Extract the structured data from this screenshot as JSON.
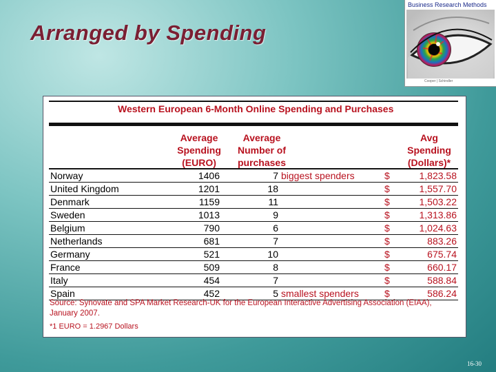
{
  "slide": {
    "title": "Arranged by Spending",
    "page_number": "16-30"
  },
  "logo": {
    "title": "Business Research Methods",
    "footer": "Cooper  |  Schindler",
    "icon": "eye-logo-icon"
  },
  "table": {
    "title": "Western European 6-Month Online Spending and Purchases",
    "headers": {
      "spending": [
        "Average",
        "Spending",
        "(EURO)"
      ],
      "purchases": [
        "Average",
        "Number of",
        "purchases"
      ],
      "dollars": [
        "Avg",
        "Spending",
        "(Dollars)*"
      ]
    },
    "rows": [
      {
        "country": "Norway",
        "spending": "1406",
        "purchases": "7",
        "note": "biggest spenders",
        "currency": "$",
        "dollars": "1,823.58"
      },
      {
        "country": "United Kingdom",
        "spending": "1201",
        "purchases": "18",
        "note": "",
        "currency": "$",
        "dollars": "1,557.70"
      },
      {
        "country": "Denmark",
        "spending": "1159",
        "purchases": "11",
        "note": "",
        "currency": "$",
        "dollars": "1,503.22"
      },
      {
        "country": "Sweden",
        "spending": "1013",
        "purchases": "9",
        "note": "",
        "currency": "$",
        "dollars": "1,313.86"
      },
      {
        "country": "Belgium",
        "spending": "790",
        "purchases": "6",
        "note": "",
        "currency": "$",
        "dollars": "1,024.63"
      },
      {
        "country": "Netherlands",
        "spending": "681",
        "purchases": "7",
        "note": "",
        "currency": "$",
        "dollars": "883.26"
      },
      {
        "country": "Germany",
        "spending": "521",
        "purchases": "10",
        "note": "",
        "currency": "$",
        "dollars": "675.74"
      },
      {
        "country": "France",
        "spending": "509",
        "purchases": "8",
        "note": "",
        "currency": "$",
        "dollars": "660.17"
      },
      {
        "country": "Italy",
        "spending": "454",
        "purchases": "7",
        "note": "",
        "currency": "$",
        "dollars": "588.84"
      },
      {
        "country": "Spain",
        "spending": "452",
        "purchases": "5",
        "note": "smallest spenders",
        "currency": "$",
        "dollars": "586.24"
      }
    ],
    "source": "Source: Synovate and SPA Market Research-UK for the European Interactive Advertising Association (EIAA), January 2007.",
    "footnote": "*1 EURO = 1.2967 Dollars"
  },
  "colors": {
    "title": "#7a1f33",
    "table_accent": "#b8121f",
    "background": "#3f9a9a"
  }
}
